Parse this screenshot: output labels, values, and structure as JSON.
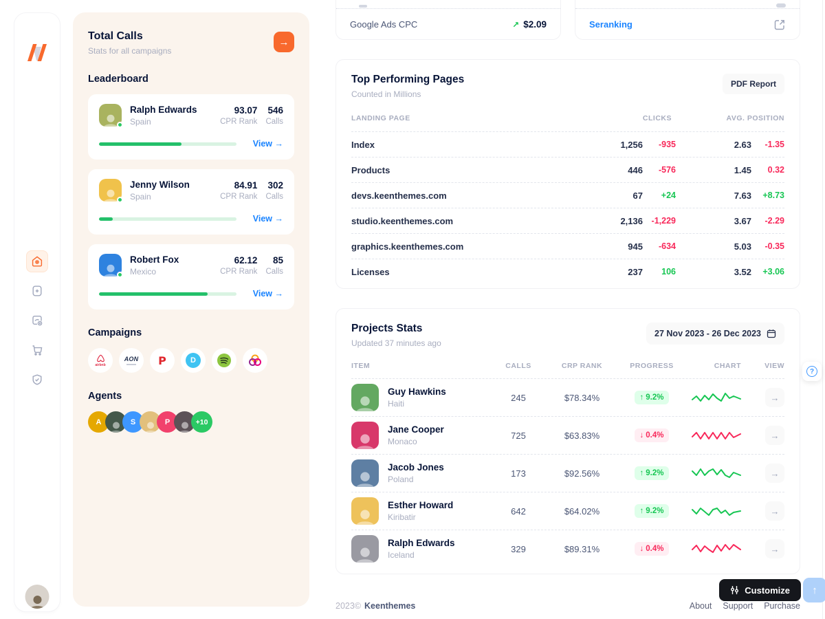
{
  "sidebar": {
    "nav_items": [
      {
        "name": "home",
        "active": true
      },
      {
        "name": "add-file",
        "active": false
      },
      {
        "name": "projects",
        "active": false
      },
      {
        "name": "cart",
        "active": false
      },
      {
        "name": "security",
        "active": false
      }
    ]
  },
  "calls_panel": {
    "title": "Total Calls",
    "subtitle": "Stats for all campaigns",
    "leaderboard_heading": "Leaderboard",
    "campaigns_heading": "Campaigns",
    "agents_heading": "Agents",
    "view_label": "View →",
    "stat_labels": {
      "cpr": "CPR Rank",
      "calls": "Calls"
    },
    "leaders": [
      {
        "name": "Ralph Edwards",
        "country": "Spain",
        "cpr": "93.07",
        "calls": "546",
        "progress_pct": 60,
        "avatar_bg": "#a9b35f"
      },
      {
        "name": "Jenny Wilson",
        "country": "Spain",
        "cpr": "84.91",
        "calls": "302",
        "progress_pct": 10,
        "avatar_bg": "#f0c24b"
      },
      {
        "name": "Robert Fox",
        "country": "Mexico",
        "cpr": "62.12",
        "calls": "85",
        "progress_pct": 79,
        "avatar_bg": "#2e82df"
      }
    ],
    "campaigns": [
      {
        "label": "airbnb"
      },
      {
        "label": "AON"
      },
      {
        "label": "P"
      },
      {
        "label": "D"
      },
      {
        "label": "Spotify"
      },
      {
        "label": "Trefoil"
      }
    ],
    "agents": [
      {
        "kind": "letter",
        "label": "A",
        "bg": "#e5a800"
      },
      {
        "kind": "photo",
        "label": "",
        "bg": "#44584a"
      },
      {
        "kind": "letter",
        "label": "S",
        "bg": "#3e97ff"
      },
      {
        "kind": "photo",
        "label": "",
        "bg": "#e2c07c"
      },
      {
        "kind": "letter",
        "label": "P",
        "bg": "#f1416c"
      },
      {
        "kind": "photo",
        "label": "",
        "bg": "#5c5257"
      },
      {
        "kind": "more",
        "label": "+10",
        "bg": "#2bc964"
      }
    ]
  },
  "mini_cards": {
    "left": {
      "label": "Google Ads CPC",
      "value": "$2.09",
      "trend_arrow": "↗",
      "tone": "pos"
    },
    "right": {
      "label": "Seranking"
    }
  },
  "top_pages": {
    "title": "Top Performing Pages",
    "subtitle": "Counted in Millions",
    "button_label": "PDF Report",
    "columns": [
      "LANDING PAGE",
      "CLICKS",
      "AVG. POSITION"
    ],
    "rows": [
      {
        "page": "Index",
        "clicks": "1,256",
        "clicks_delta": "-935",
        "clicks_tone": "neg",
        "pos": "2.63",
        "pos_delta": "-1.35",
        "pos_tone": "neg"
      },
      {
        "page": "Products",
        "clicks": "446",
        "clicks_delta": "-576",
        "clicks_tone": "neg",
        "pos": "1.45",
        "pos_delta": "0.32",
        "pos_tone": "neg"
      },
      {
        "page": "devs.keenthemes.com",
        "clicks": "67",
        "clicks_delta": "+24",
        "clicks_tone": "pos",
        "pos": "7.63",
        "pos_delta": "+8.73",
        "pos_tone": "pos"
      },
      {
        "page": "studio.keenthemes.com",
        "clicks": "2,136",
        "clicks_delta": "-1,229",
        "clicks_tone": "neg",
        "pos": "3.67",
        "pos_delta": "-2.29",
        "pos_tone": "neg"
      },
      {
        "page": "graphics.keenthemes.com",
        "clicks": "945",
        "clicks_delta": "-634",
        "clicks_tone": "neg",
        "pos": "5.03",
        "pos_delta": "-0.35",
        "pos_tone": "neg"
      },
      {
        "page": "Licenses",
        "clicks": "237",
        "clicks_delta": "106",
        "clicks_tone": "pos",
        "pos": "3.52",
        "pos_delta": "+3.06",
        "pos_tone": "pos"
      }
    ]
  },
  "projects": {
    "title": "Projects Stats",
    "subtitle": "Updated 37 minutes ago",
    "date_range": "27 Nov 2023 - 26 Dec 2023",
    "columns": [
      "ITEM",
      "CALLS",
      "CRP RANK",
      "PROGRESS",
      "CHART",
      "VIEW"
    ],
    "view_arrow": "→",
    "rows": [
      {
        "name": "Guy Hawkins",
        "country": "Haiti",
        "calls": "245",
        "crp": "$78.34%",
        "badge_arrow": "↑",
        "badge_value": "9.2%",
        "tone": "pos",
        "avatar_bg": "#63a861"
      },
      {
        "name": "Jane Cooper",
        "country": "Monaco",
        "calls": "725",
        "crp": "$63.83%",
        "badge_arrow": "↓",
        "badge_value": "0.4%",
        "tone": "neg",
        "avatar_bg": "#d8386a"
      },
      {
        "name": "Jacob Jones",
        "country": "Poland",
        "calls": "173",
        "crp": "$92.56%",
        "badge_arrow": "↑",
        "badge_value": "9.2%",
        "tone": "pos",
        "avatar_bg": "#5e7fa3"
      },
      {
        "name": "Esther Howard",
        "country": "Kiribatir",
        "calls": "642",
        "crp": "$64.02%",
        "badge_arrow": "↑",
        "badge_value": "9.2%",
        "tone": "pos",
        "avatar_bg": "#eec25b"
      },
      {
        "name": "Ralph Edwards",
        "country": "Iceland",
        "calls": "329",
        "crp": "$89.31%",
        "badge_arrow": "↓",
        "badge_value": "0.4%",
        "tone": "neg",
        "avatar_bg": "#9a9aa2"
      }
    ]
  },
  "footer": {
    "year": "2023©",
    "brand": "Keenthemes",
    "links": [
      "About",
      "Support",
      "Purchase"
    ]
  },
  "floating": {
    "customize_label": "Customize",
    "scroll_top_arrow": "↑"
  },
  "colors": {
    "accent_orange": "#F8692D",
    "green": "#17C653",
    "red": "#F8285A",
    "blue": "#1B84FF",
    "dark": "#071437",
    "muted": "#99A1B7",
    "panel_cream": "#FBF4ED"
  }
}
